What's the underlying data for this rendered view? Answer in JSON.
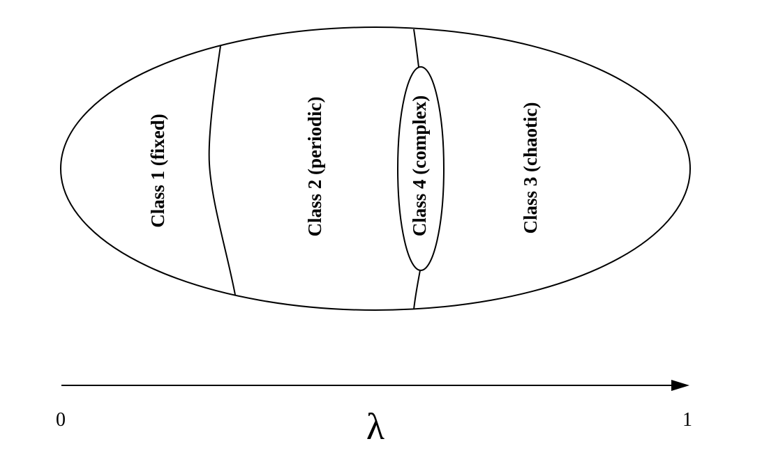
{
  "diagram": {
    "regions": [
      {
        "label": "Class 1 (fixed)"
      },
      {
        "label": "Class 2 (periodic)"
      },
      {
        "label": "Class 4 (complex)"
      },
      {
        "label": "Class 3 (chaotic)"
      }
    ],
    "axis": {
      "start_label": "0",
      "end_label": "1",
      "variable_label": "λ"
    }
  },
  "colors": {
    "stroke": "#000000",
    "background": "#ffffff"
  }
}
